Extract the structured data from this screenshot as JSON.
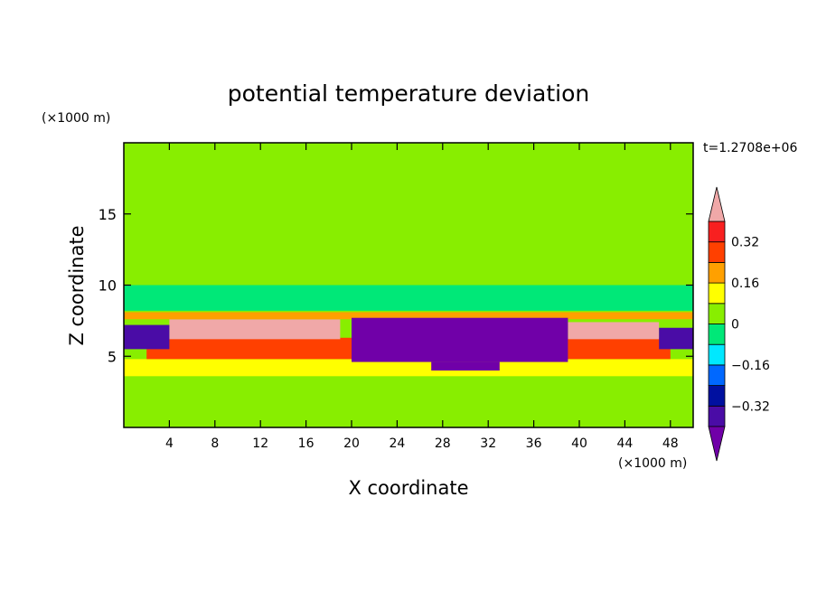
{
  "chart_data": {
    "type": "heatmap",
    "title": "potential temperature deviation",
    "xlabel": "X coordinate",
    "ylabel": "Z coordinate",
    "x_units": "(×1000 m)",
    "y_units": "(×1000 m)",
    "time_label": "t=1.2708e+06",
    "xlim": [
      0,
      50
    ],
    "ylim": [
      0,
      20
    ],
    "x_ticks": [
      4,
      8,
      12,
      16,
      20,
      24,
      28,
      32,
      36,
      40,
      44,
      48
    ],
    "y_ticks": [
      5,
      10,
      15
    ],
    "colorbar": {
      "levels": [
        -0.4,
        -0.32,
        -0.24,
        -0.16,
        -0.08,
        0,
        0.08,
        0.16,
        0.24,
        0.32,
        0.4
      ],
      "tick_values": [
        0.32,
        0.16,
        0,
        -0.16,
        -0.32
      ],
      "tick_labels": [
        "0.32",
        "0.16",
        "0",
        "−0.16",
        "−0.32"
      ],
      "colors": [
        "#7000a8",
        "#4a0ca6",
        "#0010a0",
        "#0068ff",
        "#00e8ff",
        "#00e878",
        "#88ee00",
        "#ffff00",
        "#ffa000",
        "#ff4000",
        "#f82020",
        "#f0a8a8"
      ]
    },
    "regions": [
      {
        "x": [
          0,
          50
        ],
        "z": [
          0,
          20
        ],
        "value": 0.02
      },
      {
        "x": [
          0,
          50
        ],
        "z": [
          3.6,
          4.8
        ],
        "value": 0.12
      },
      {
        "x": [
          0,
          50
        ],
        "z": [
          8.2,
          10
        ],
        "value": -0.01
      },
      {
        "x": [
          0,
          50
        ],
        "z": [
          11.5,
          14
        ],
        "value": 0.0
      },
      {
        "x": [
          0,
          50
        ],
        "z": [
          14,
          15.8
        ],
        "value": 0.05
      },
      {
        "x": [
          0,
          50
        ],
        "z": [
          17.5,
          20
        ],
        "value": 0.05
      },
      {
        "x": [
          2,
          20
        ],
        "z": [
          4.8,
          6.3
        ],
        "value": 0.3
      },
      {
        "x": [
          38,
          48
        ],
        "z": [
          4.8,
          6.3
        ],
        "value": 0.3
      },
      {
        "x": [
          4,
          19
        ],
        "z": [
          6.2,
          7.6
        ],
        "value": 0.42
      },
      {
        "x": [
          39,
          47
        ],
        "z": [
          6.2,
          7.4
        ],
        "value": 0.42
      },
      {
        "x": [
          0,
          50
        ],
        "z": [
          7.6,
          8.1
        ],
        "value": 0.22
      },
      {
        "x": [
          0,
          4
        ],
        "z": [
          5.5,
          7.2
        ],
        "value": -0.36
      },
      {
        "x": [
          47,
          50
        ],
        "z": [
          5.5,
          7.0
        ],
        "value": -0.36
      },
      {
        "x": [
          20,
          39
        ],
        "z": [
          4.6,
          7.7
        ],
        "value": -0.42
      },
      {
        "x": [
          27,
          33
        ],
        "z": [
          4.0,
          4.6
        ],
        "value": -0.42
      }
    ]
  }
}
